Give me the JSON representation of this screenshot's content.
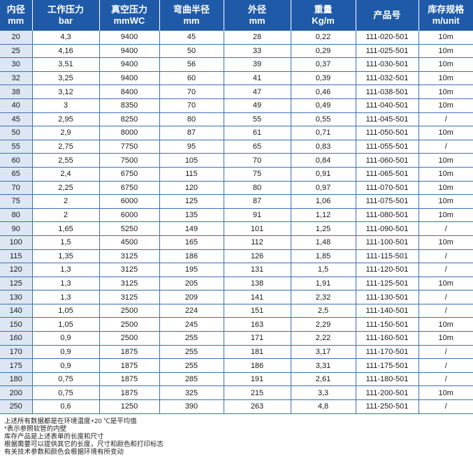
{
  "table": {
    "headers": [
      {
        "line1": "内径",
        "line2": "mm"
      },
      {
        "line1": "工作压力",
        "line2": "bar"
      },
      {
        "line1": "真空压力",
        "line2": "mmWC"
      },
      {
        "line1": "弯曲半径",
        "line2": "mm"
      },
      {
        "line1": "外径",
        "line2": "mm"
      },
      {
        "line1": "重量",
        "line2": "Kg/m"
      },
      {
        "line1": "产品号",
        "line2": ""
      },
      {
        "line1": "库存规格",
        "line2": "m/unit"
      }
    ],
    "rows": [
      [
        "20",
        "4,3",
        "9400",
        "45",
        "28",
        "0,22",
        "111-020-501",
        "10m"
      ],
      [
        "25",
        "4,16",
        "9400",
        "50",
        "33",
        "0,29",
        "111-025-501",
        "10m"
      ],
      [
        "30",
        "3,51",
        "9400",
        "56",
        "39",
        "0,37",
        "111-030-501",
        "10m"
      ],
      [
        "32",
        "3,25",
        "9400",
        "60",
        "41",
        "0,39",
        "111-032-501",
        "10m"
      ],
      [
        "38",
        "3,12",
        "8400",
        "70",
        "47",
        "0,46",
        "111-038-501",
        "10m"
      ],
      [
        "40",
        "3",
        "8350",
        "70",
        "49",
        "0,49",
        "111-040-501",
        "10m"
      ],
      [
        "45",
        "2,95",
        "8250",
        "80",
        "55",
        "0,55",
        "111-045-501",
        "/"
      ],
      [
        "50",
        "2,9",
        "8000",
        "87",
        "61",
        "0,71",
        "111-050-501",
        "10m"
      ],
      [
        "55",
        "2,75",
        "7750",
        "95",
        "65",
        "0,83",
        "111-055-501",
        "/"
      ],
      [
        "60",
        "2,55",
        "7500",
        "105",
        "70",
        "0,84",
        "111-060-501",
        "10m"
      ],
      [
        "65",
        "2,4",
        "6750",
        "115",
        "75",
        "0,91",
        "111-065-501",
        "10m"
      ],
      [
        "70",
        "2,25",
        "6750",
        "120",
        "80",
        "0,97",
        "111-070-501",
        "10m"
      ],
      [
        "75",
        "2",
        "6000",
        "125",
        "87",
        "1,06",
        "111-075-501",
        "10m"
      ],
      [
        "80",
        "2",
        "6000",
        "135",
        "91",
        "1,12",
        "111-080-501",
        "10m"
      ],
      [
        "90",
        "1,65",
        "5250",
        "149",
        "101",
        "1,25",
        "111-090-501",
        "/"
      ],
      [
        "100",
        "1,5",
        "4500",
        "165",
        "112",
        "1,48",
        "111-100-501",
        "10m"
      ],
      [
        "115",
        "1,35",
        "3125",
        "186",
        "126",
        "1,85",
        "111-115-501",
        "/"
      ],
      [
        "120",
        "1,3",
        "3125",
        "195",
        "131",
        "1,5",
        "111-120-501",
        "/"
      ],
      [
        "125",
        "1,3",
        "3125",
        "205",
        "138",
        "1,91",
        "111-125-501",
        "10m"
      ],
      [
        "130",
        "1,3",
        "3125",
        "209",
        "141",
        "2,32",
        "111-130-501",
        "/"
      ],
      [
        "140",
        "1,05",
        "2500",
        "224",
        "151",
        "2,5",
        "111-140-501",
        "/"
      ],
      [
        "150",
        "1,05",
        "2500",
        "245",
        "163",
        "2,29",
        "111-150-501",
        "10m"
      ],
      [
        "160",
        "0,9",
        "2500",
        "255",
        "171",
        "2,22",
        "111-160-501",
        "10m"
      ],
      [
        "170",
        "0,9",
        "1875",
        "255",
        "181",
        "3,17",
        "111-170-501",
        "/"
      ],
      [
        "175",
        "0,9",
        "1875",
        "255",
        "186",
        "3,31",
        "111-175-501",
        "/"
      ],
      [
        "180",
        "0,75",
        "1875",
        "285",
        "191",
        "2,61",
        "111-180-501",
        "/"
      ],
      [
        "200",
        "0,75",
        "1875",
        "325",
        "215",
        "3,3",
        "111-200-501",
        "10m"
      ],
      [
        "250",
        "0,6",
        "1250",
        "390",
        "263",
        "4,8",
        "111-250-501",
        "/"
      ]
    ]
  },
  "notes": [
    "上述所有数据都是在环境温度+20 ℃是平均值",
    "*表示参照软管的内壁",
    "库存产品是上述表单的长度和尺寸",
    "根据需要可以提供其它的长度，尺寸和颜色和打印标志",
    "有关技术参数和颜色会根据环境有所变动"
  ]
}
